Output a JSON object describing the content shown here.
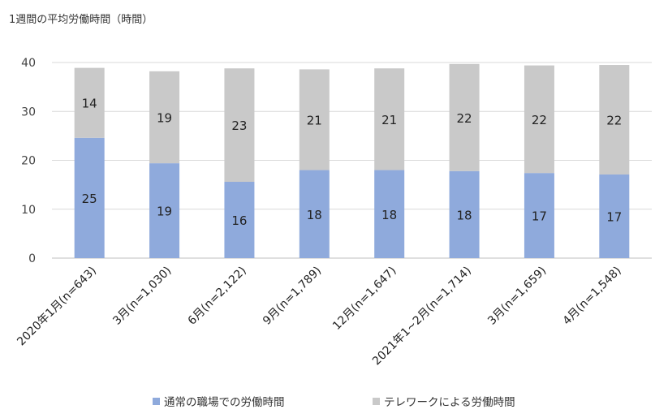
{
  "chart_data": {
    "type": "bar",
    "stacked": true,
    "title": "",
    "unit_label": "1週間の平均労働時間（時間）",
    "xlabel": "",
    "ylabel": "",
    "ylim": [
      0,
      40
    ],
    "yticks": [
      0,
      10,
      20,
      30,
      40
    ],
    "grid": true,
    "legend_position": "bottom",
    "categories": [
      "2020年1月(n=643)",
      "3月(n=1,030)",
      "6月(n=2,122)",
      "9月(n=1,789)",
      "12月(n=1,647)",
      "2021年1~2月(n=1,714)",
      "3月(n=1,659)",
      "4月(n=1,548)"
    ],
    "series": [
      {
        "name": "通常の職場での労働時間",
        "color": "#8faadc",
        "values": [
          24.6,
          19.4,
          15.6,
          18.0,
          18.0,
          17.8,
          17.4,
          17.1
        ],
        "labels": [
          "25",
          "19",
          "16",
          "18",
          "18",
          "18",
          "17",
          "17"
        ]
      },
      {
        "name": "テレワークによる労働時間",
        "color": "#c9c9c9",
        "values": [
          14.3,
          18.8,
          23.2,
          20.6,
          20.8,
          21.9,
          22.0,
          22.4
        ],
        "labels": [
          "14",
          "19",
          "23",
          "21",
          "21",
          "22",
          "22",
          "22"
        ]
      }
    ]
  }
}
